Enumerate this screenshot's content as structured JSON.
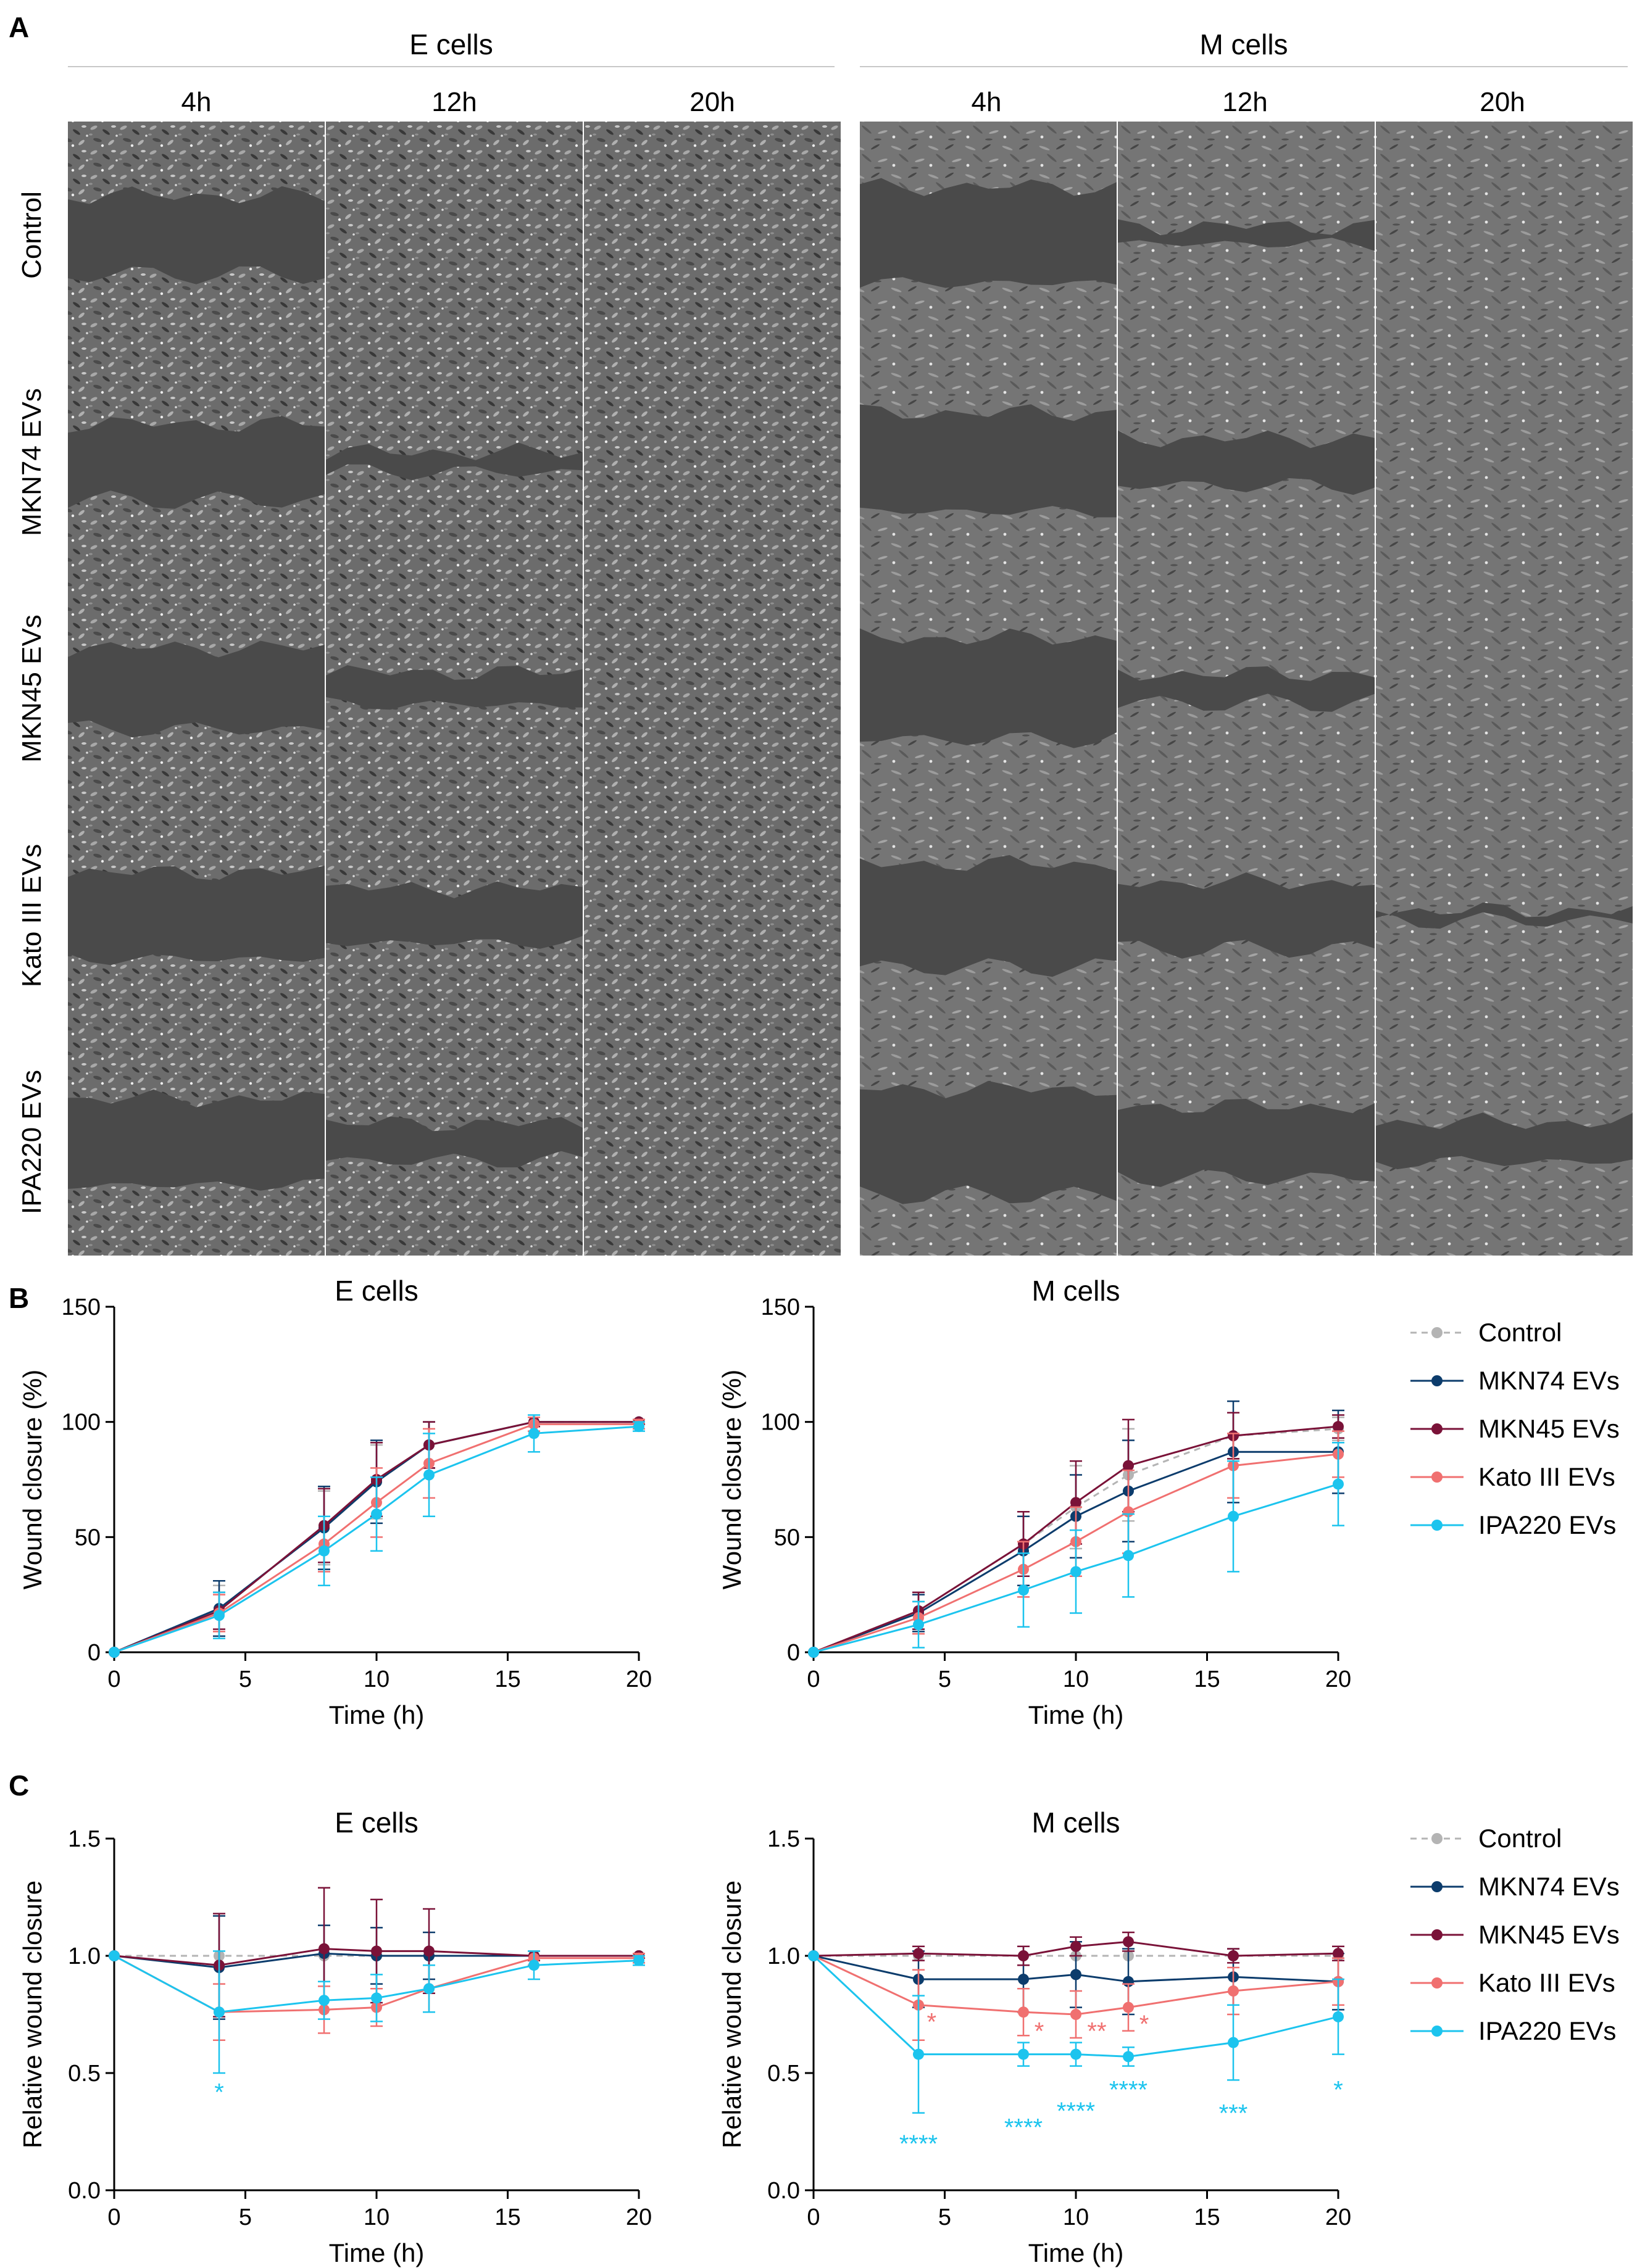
{
  "panel_a": {
    "letter": "A",
    "groups": [
      {
        "name": "E cells",
        "times": [
          "4h",
          "12h",
          "20h"
        ]
      },
      {
        "name": "M cells",
        "times": [
          "4h",
          "12h",
          "20h"
        ]
      }
    ],
    "rows": [
      "Control",
      "MKN74 EVs",
      "MKN45 EVs",
      "Kato III EVs",
      "IPA220 EVs"
    ]
  },
  "legend": {
    "items": [
      {
        "name": "Control",
        "color": "#b4b4b4",
        "dashed": true
      },
      {
        "name": "MKN74 EVs",
        "color": "#0c3c6c",
        "dashed": false
      },
      {
        "name": "MKN45 EVs",
        "color": "#7a1238",
        "dashed": false
      },
      {
        "name": "Kato III EVs",
        "color": "#f07070",
        "dashed": false
      },
      {
        "name": "IPA220 EVs",
        "color": "#1cc4ee",
        "dashed": false
      }
    ]
  },
  "chart_data": [
    {
      "panel": "B",
      "type": "line",
      "title": "E cells",
      "xlabel": "Time (h)",
      "ylabel": "Wound closure (%)",
      "xlim": [
        0,
        20
      ],
      "ylim": [
        0,
        150
      ],
      "xticks": [
        "0",
        "5",
        "10",
        "15",
        "20"
      ],
      "yticks": [
        "0",
        "50",
        "100",
        "150"
      ],
      "x": [
        0,
        4,
        8,
        10,
        12,
        16,
        20
      ],
      "series": [
        {
          "name": "Control",
          "values": [
            0,
            19,
            54,
            74,
            90,
            100,
            100
          ],
          "err": [
            0,
            10,
            16,
            16,
            10,
            2,
            1
          ]
        },
        {
          "name": "MKN74 EVs",
          "values": [
            0,
            19,
            54,
            74,
            90,
            100,
            100
          ],
          "err": [
            0,
            12,
            18,
            18,
            10,
            2,
            1
          ]
        },
        {
          "name": "MKN45 EVs",
          "values": [
            0,
            18,
            55,
            75,
            90,
            100,
            100
          ],
          "err": [
            0,
            8,
            16,
            16,
            10,
            2,
            1
          ]
        },
        {
          "name": "Kato III EVs",
          "values": [
            0,
            17,
            47,
            65,
            82,
            99,
            99
          ],
          "err": [
            0,
            8,
            12,
            15,
            15,
            3,
            2
          ]
        },
        {
          "name": "IPA220 EVs",
          "values": [
            0,
            16,
            44,
            60,
            77,
            95,
            98
          ],
          "err": [
            0,
            10,
            15,
            16,
            18,
            8,
            2
          ]
        }
      ]
    },
    {
      "panel": "B",
      "type": "line",
      "title": "M cells",
      "xlabel": "Time (h)",
      "ylabel": "Wound closure (%)",
      "xlim": [
        0,
        20
      ],
      "ylim": [
        0,
        150
      ],
      "xticks": [
        "0",
        "5",
        "10",
        "15",
        "20"
      ],
      "yticks": [
        "0",
        "50",
        "100",
        "150"
      ],
      "x": [
        0,
        4,
        8,
        10,
        12,
        16,
        20
      ],
      "series": [
        {
          "name": "Control",
          "values": [
            0,
            18,
            47,
            63,
            77,
            94,
            97
          ],
          "err": [
            0,
            8,
            14,
            18,
            20,
            10,
            5
          ]
        },
        {
          "name": "MKN74 EVs",
          "values": [
            0,
            17,
            44,
            59,
            70,
            87,
            87
          ],
          "err": [
            0,
            8,
            15,
            18,
            22,
            22,
            18
          ]
        },
        {
          "name": "MKN45 EVs",
          "values": [
            0,
            18,
            47,
            65,
            81,
            94,
            98
          ],
          "err": [
            0,
            8,
            14,
            18,
            20,
            10,
            5
          ]
        },
        {
          "name": "Kato III EVs",
          "values": [
            0,
            15,
            36,
            48,
            61,
            81,
            86
          ],
          "err": [
            0,
            7,
            12,
            15,
            18,
            14,
            10
          ]
        },
        {
          "name": "IPA220 EVs",
          "values": [
            0,
            12,
            27,
            35,
            42,
            59,
            73
          ],
          "err": [
            0,
            10,
            16,
            18,
            18,
            24,
            18
          ]
        }
      ]
    },
    {
      "panel": "C",
      "type": "line",
      "title": "E cells",
      "xlabel": "Time (h)",
      "ylabel": "Relative wound closure",
      "xlim": [
        0,
        20
      ],
      "ylim": [
        0,
        1.5
      ],
      "xticks": [
        "0",
        "5",
        "10",
        "15",
        "20"
      ],
      "yticks": [
        "0.0",
        "0.5",
        "1.0",
        "1.5"
      ],
      "x": [
        0,
        4,
        8,
        10,
        12,
        16,
        20
      ],
      "series": [
        {
          "name": "Control",
          "values": [
            1.0,
            1.0,
            1.0,
            1.0,
            1.0,
            1.0,
            1.0
          ],
          "err": [
            0,
            0,
            0,
            0,
            0,
            0,
            0
          ]
        },
        {
          "name": "MKN74 EVs",
          "values": [
            1.0,
            0.95,
            1.01,
            1.0,
            1.0,
            1.0,
            1.0
          ],
          "err": [
            0,
            0.22,
            0.12,
            0.12,
            0.1,
            0.02,
            0.01
          ]
        },
        {
          "name": "MKN45 EVs",
          "values": [
            1.0,
            0.96,
            1.03,
            1.02,
            1.02,
            1.0,
            1.0
          ],
          "err": [
            0,
            0.22,
            0.26,
            0.22,
            0.18,
            0.02,
            0.01
          ]
        },
        {
          "name": "Kato III EVs",
          "values": [
            1.0,
            0.76,
            0.77,
            0.78,
            0.86,
            0.99,
            0.99
          ],
          "err": [
            0,
            0.12,
            0.1,
            0.08,
            0.1,
            0.03,
            0.02
          ]
        },
        {
          "name": "IPA220 EVs",
          "values": [
            1.0,
            0.76,
            0.81,
            0.82,
            0.86,
            0.96,
            0.98
          ],
          "err": [
            0,
            0.26,
            0.08,
            0.1,
            0.1,
            0.06,
            0.02
          ]
        }
      ],
      "annotations": [
        {
          "text": "*",
          "x": 4,
          "y": 0.42,
          "series": "IPA220 EVs"
        }
      ]
    },
    {
      "panel": "C",
      "type": "line",
      "title": "M cells",
      "xlabel": "Time (h)",
      "ylabel": "Relative wound closure",
      "xlim": [
        0,
        20
      ],
      "ylim": [
        0,
        1.5
      ],
      "xticks": [
        "0",
        "5",
        "10",
        "15",
        "20"
      ],
      "yticks": [
        "0.0",
        "0.5",
        "1.0",
        "1.5"
      ],
      "x": [
        0,
        4,
        8,
        10,
        12,
        16,
        20
      ],
      "series": [
        {
          "name": "Control",
          "values": [
            1.0,
            1.0,
            1.0,
            1.0,
            1.0,
            1.0,
            1.0
          ],
          "err": [
            0,
            0,
            0,
            0,
            0,
            0,
            0
          ]
        },
        {
          "name": "MKN74 EVs",
          "values": [
            1.0,
            0.9,
            0.9,
            0.92,
            0.89,
            0.91,
            0.89
          ],
          "err": [
            0,
            0.12,
            0.14,
            0.14,
            0.14,
            0.12,
            0.12
          ]
        },
        {
          "name": "MKN45 EVs",
          "values": [
            1.0,
            1.01,
            1.0,
            1.04,
            1.06,
            1.0,
            1.01
          ],
          "err": [
            0,
            0.03,
            0.04,
            0.04,
            0.04,
            0.03,
            0.03
          ]
        },
        {
          "name": "Kato III EVs",
          "values": [
            1.0,
            0.79,
            0.76,
            0.75,
            0.78,
            0.85,
            0.89
          ],
          "err": [
            0,
            0.15,
            0.1,
            0.1,
            0.1,
            0.1,
            0.1
          ]
        },
        {
          "name": "IPA220 EVs",
          "values": [
            1.0,
            0.58,
            0.58,
            0.58,
            0.57,
            0.63,
            0.74
          ],
          "err": [
            0,
            0.25,
            0.05,
            0.05,
            0.04,
            0.16,
            0.16
          ]
        }
      ],
      "annotations": [
        {
          "text": "*",
          "x": 4.5,
          "y": 0.72,
          "series": "Kato III EVs"
        },
        {
          "text": "*",
          "x": 8.6,
          "y": 0.68,
          "series": "Kato III EVs"
        },
        {
          "text": "**",
          "x": 10.8,
          "y": 0.68,
          "series": "Kato III EVs"
        },
        {
          "text": "*",
          "x": 12.6,
          "y": 0.71,
          "series": "Kato III EVs"
        },
        {
          "text": "****",
          "x": 4,
          "y": 0.2,
          "series": "IPA220 EVs"
        },
        {
          "text": "****",
          "x": 8,
          "y": 0.27,
          "series": "IPA220 EVs"
        },
        {
          "text": "****",
          "x": 10,
          "y": 0.34,
          "series": "IPA220 EVs"
        },
        {
          "text": "****",
          "x": 12,
          "y": 0.43,
          "series": "IPA220 EVs"
        },
        {
          "text": "***",
          "x": 16,
          "y": 0.33,
          "series": "IPA220 EVs"
        },
        {
          "text": "*",
          "x": 20,
          "y": 0.43,
          "series": "IPA220 EVs"
        }
      ]
    }
  ]
}
